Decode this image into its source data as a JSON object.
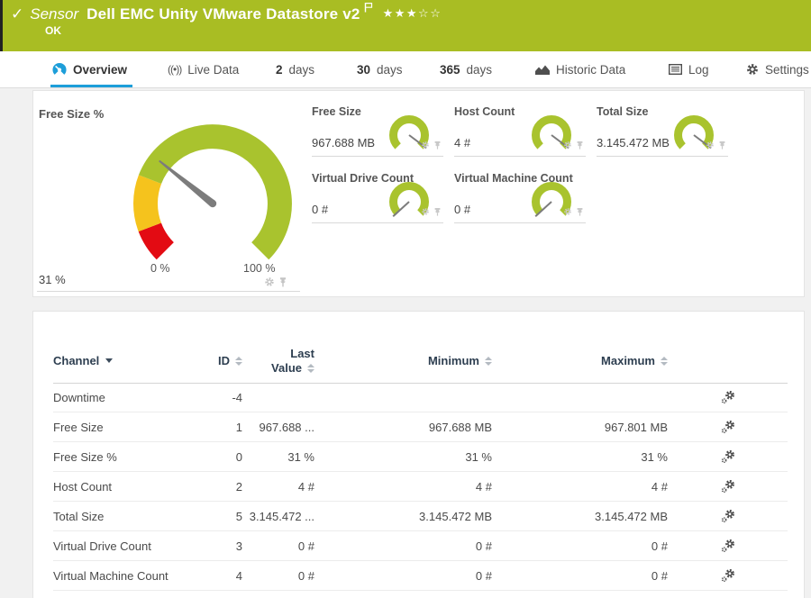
{
  "header": {
    "status_check": "✓",
    "kind": "Sensor",
    "title": "Dell EMC Unity VMware Datastore v2",
    "status": "OK",
    "rating": {
      "filled": 3,
      "total": 5
    }
  },
  "tabs": {
    "overview": {
      "label": "Overview"
    },
    "live_data": {
      "label": "Live Data"
    },
    "days2": {
      "num": "2",
      "unit": "days"
    },
    "days30": {
      "num": "30",
      "unit": "days"
    },
    "days365": {
      "num": "365",
      "unit": "days"
    },
    "historic": {
      "label": "Historic Data"
    },
    "log": {
      "label": "Log"
    },
    "settings": {
      "label": "Settings"
    }
  },
  "gauges": {
    "main": {
      "title": "Free Size %",
      "value_label": "31 %",
      "value_pct": 31,
      "min_label": "0 %",
      "max_label": "100 %",
      "segments": [
        {
          "from": 0,
          "to": 9,
          "color": "#e30b13"
        },
        {
          "from": 9,
          "to": 24.5,
          "color": "#f5c31d"
        },
        {
          "from": 24.5,
          "to": 100,
          "color": "#a9c32e"
        }
      ]
    },
    "small": [
      {
        "title": "Free Size",
        "value": "967.688 MB",
        "needle_pct": 97
      },
      {
        "title": "Host Count",
        "value": "4 #",
        "needle_pct": 97
      },
      {
        "title": "Total Size",
        "value": "3.145.472 MB",
        "needle_pct": 97
      },
      {
        "title": "Virtual Drive Count",
        "value": "0 #",
        "needle_pct": 1
      },
      {
        "title": "Virtual Machine Count",
        "value": "0 #",
        "needle_pct": 1
      }
    ]
  },
  "table": {
    "columns": {
      "channel": "Channel",
      "id": "ID",
      "last_line1": "Last",
      "last_line2": "Value",
      "min": "Minimum",
      "max": "Maximum"
    },
    "rows": [
      {
        "channel": "Downtime",
        "id": "-4",
        "last": "",
        "min": "",
        "max": ""
      },
      {
        "channel": "Free Size",
        "id": "1",
        "last": "967.688 ...",
        "min": "967.688 MB",
        "max": "967.801 MB"
      },
      {
        "channel": "Free Size %",
        "id": "0",
        "last": "31 %",
        "min": "31 %",
        "max": "31 %"
      },
      {
        "channel": "Host Count",
        "id": "2",
        "last": "4 #",
        "min": "4 #",
        "max": "4 #"
      },
      {
        "channel": "Total Size",
        "id": "5",
        "last": "3.145.472 ...",
        "min": "3.145.472 MB",
        "max": "3.145.472 MB"
      },
      {
        "channel": "Virtual Drive Count",
        "id": "3",
        "last": "0 #",
        "min": "0 #",
        "max": "0 #"
      },
      {
        "channel": "Virtual Machine Count",
        "id": "4",
        "last": "0 #",
        "min": "0 #",
        "max": "0 #"
      }
    ]
  },
  "colors": {
    "header_green": "#a9bd23",
    "gauge_green": "#a9c32e",
    "gauge_yellow": "#f5c31d",
    "gauge_red": "#e30b13",
    "accent_blue": "#1d9ed9",
    "needle_gray": "#7c7c7c",
    "table_header_text": "#2d3e50"
  }
}
